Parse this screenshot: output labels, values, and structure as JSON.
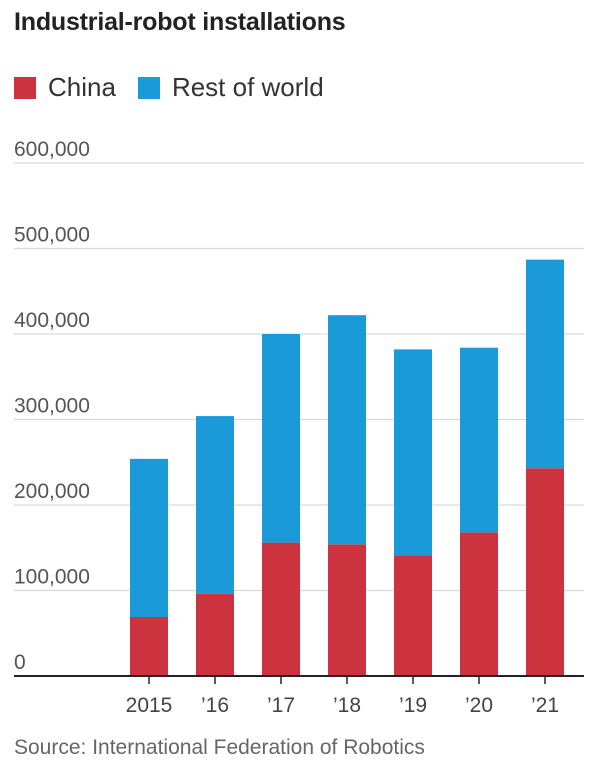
{
  "colors": {
    "china": "#cc333f",
    "rest": "#1a9ad9",
    "grid": "#d9d9d9",
    "axis": "#222222"
  },
  "chart_data": {
    "type": "bar",
    "stacked": true,
    "title": "Industrial-robot installations",
    "categories": [
      "2015",
      "’16",
      "’17",
      "’18",
      "’19",
      "’20",
      "’21"
    ],
    "series": [
      {
        "name": "China",
        "values": [
          69000,
          96000,
          156000,
          154000,
          141000,
          168000,
          243000
        ]
      },
      {
        "name": "Rest of world",
        "values": [
          185000,
          208000,
          244000,
          268000,
          241000,
          216000,
          244000
        ]
      }
    ],
    "ylim": [
      0,
      600000
    ],
    "yticks": [
      "0",
      "100,000",
      "200,000",
      "300,000",
      "400,000",
      "500,000",
      "600,000"
    ],
    "ytick_values": [
      0,
      100000,
      200000,
      300000,
      400000,
      500000,
      600000
    ],
    "grid": true,
    "legend": "top-left",
    "source": "Source: International Federation of Robotics"
  }
}
